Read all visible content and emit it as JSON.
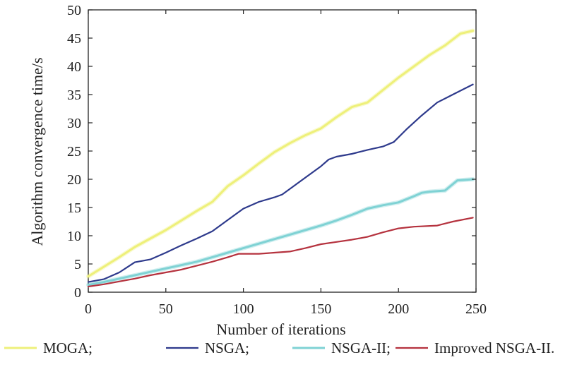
{
  "chart_data": {
    "type": "line",
    "xlabel": "Number of iterations",
    "ylabel": "Algorithm convergence time/s",
    "xlim": [
      0,
      250
    ],
    "ylim": [
      0,
      50
    ],
    "x_ticks": [
      "0",
      "50",
      "100",
      "150",
      "200",
      "250"
    ],
    "y_ticks": [
      "0",
      "5",
      "10",
      "15",
      "20",
      "25",
      "30",
      "35",
      "40",
      "45",
      "50"
    ],
    "grid": false,
    "legend_position": "bottom",
    "series": [
      {
        "name": "MOGA;",
        "color": "#eef07a",
        "x": [
          0,
          10,
          20,
          30,
          40,
          50,
          60,
          70,
          80,
          90,
          100,
          110,
          120,
          130,
          140,
          150,
          160,
          170,
          180,
          190,
          200,
          210,
          220,
          230,
          240,
          248
        ],
        "y": [
          2.8,
          4.5,
          6.2,
          8.0,
          9.5,
          11.0,
          12.7,
          14.4,
          16.0,
          18.8,
          20.7,
          22.8,
          24.8,
          26.4,
          27.8,
          29.0,
          31.0,
          32.8,
          33.6,
          35.8,
          38.0,
          40.0,
          42.0,
          43.7,
          45.8,
          46.3
        ]
      },
      {
        "name": "NSGA;",
        "color": "#2e3a8c",
        "x": [
          0,
          10,
          20,
          30,
          40,
          50,
          60,
          70,
          80,
          90,
          100,
          110,
          120,
          125,
          130,
          140,
          150,
          155,
          160,
          170,
          180,
          190,
          197,
          205,
          215,
          225,
          235,
          248
        ],
        "y": [
          1.8,
          2.3,
          3.5,
          5.3,
          5.8,
          7.0,
          8.3,
          9.5,
          10.8,
          12.8,
          14.8,
          16.0,
          16.8,
          17.3,
          18.3,
          20.3,
          22.3,
          23.5,
          24.0,
          24.5,
          25.2,
          25.8,
          26.6,
          28.8,
          31.3,
          33.6,
          35.0,
          36.8
        ]
      },
      {
        "name": "NSGA-II;",
        "color": "#7fd2d4",
        "x": [
          0,
          10,
          20,
          30,
          40,
          50,
          60,
          70,
          80,
          90,
          100,
          110,
          120,
          130,
          140,
          150,
          160,
          170,
          180,
          190,
          200,
          210,
          215,
          220,
          230,
          238,
          248
        ],
        "y": [
          1.3,
          1.8,
          2.4,
          3.0,
          3.6,
          4.2,
          4.8,
          5.4,
          6.2,
          7.0,
          7.8,
          8.6,
          9.4,
          10.2,
          11.0,
          11.8,
          12.7,
          13.7,
          14.8,
          15.4,
          15.9,
          17.0,
          17.6,
          17.8,
          18.0,
          19.8,
          20.0
        ]
      },
      {
        "name": "Improved NSGA-II.",
        "color": "#b5323e",
        "x": [
          0,
          10,
          20,
          30,
          40,
          50,
          60,
          70,
          80,
          90,
          97,
          110,
          120,
          130,
          140,
          150,
          160,
          170,
          180,
          190,
          200,
          210,
          225,
          235,
          248
        ],
        "y": [
          1.0,
          1.4,
          1.9,
          2.4,
          3.0,
          3.5,
          4.0,
          4.7,
          5.4,
          6.2,
          6.8,
          6.8,
          7.0,
          7.2,
          7.8,
          8.5,
          8.9,
          9.3,
          9.8,
          10.6,
          11.3,
          11.6,
          11.8,
          12.5,
          13.2
        ]
      }
    ]
  }
}
